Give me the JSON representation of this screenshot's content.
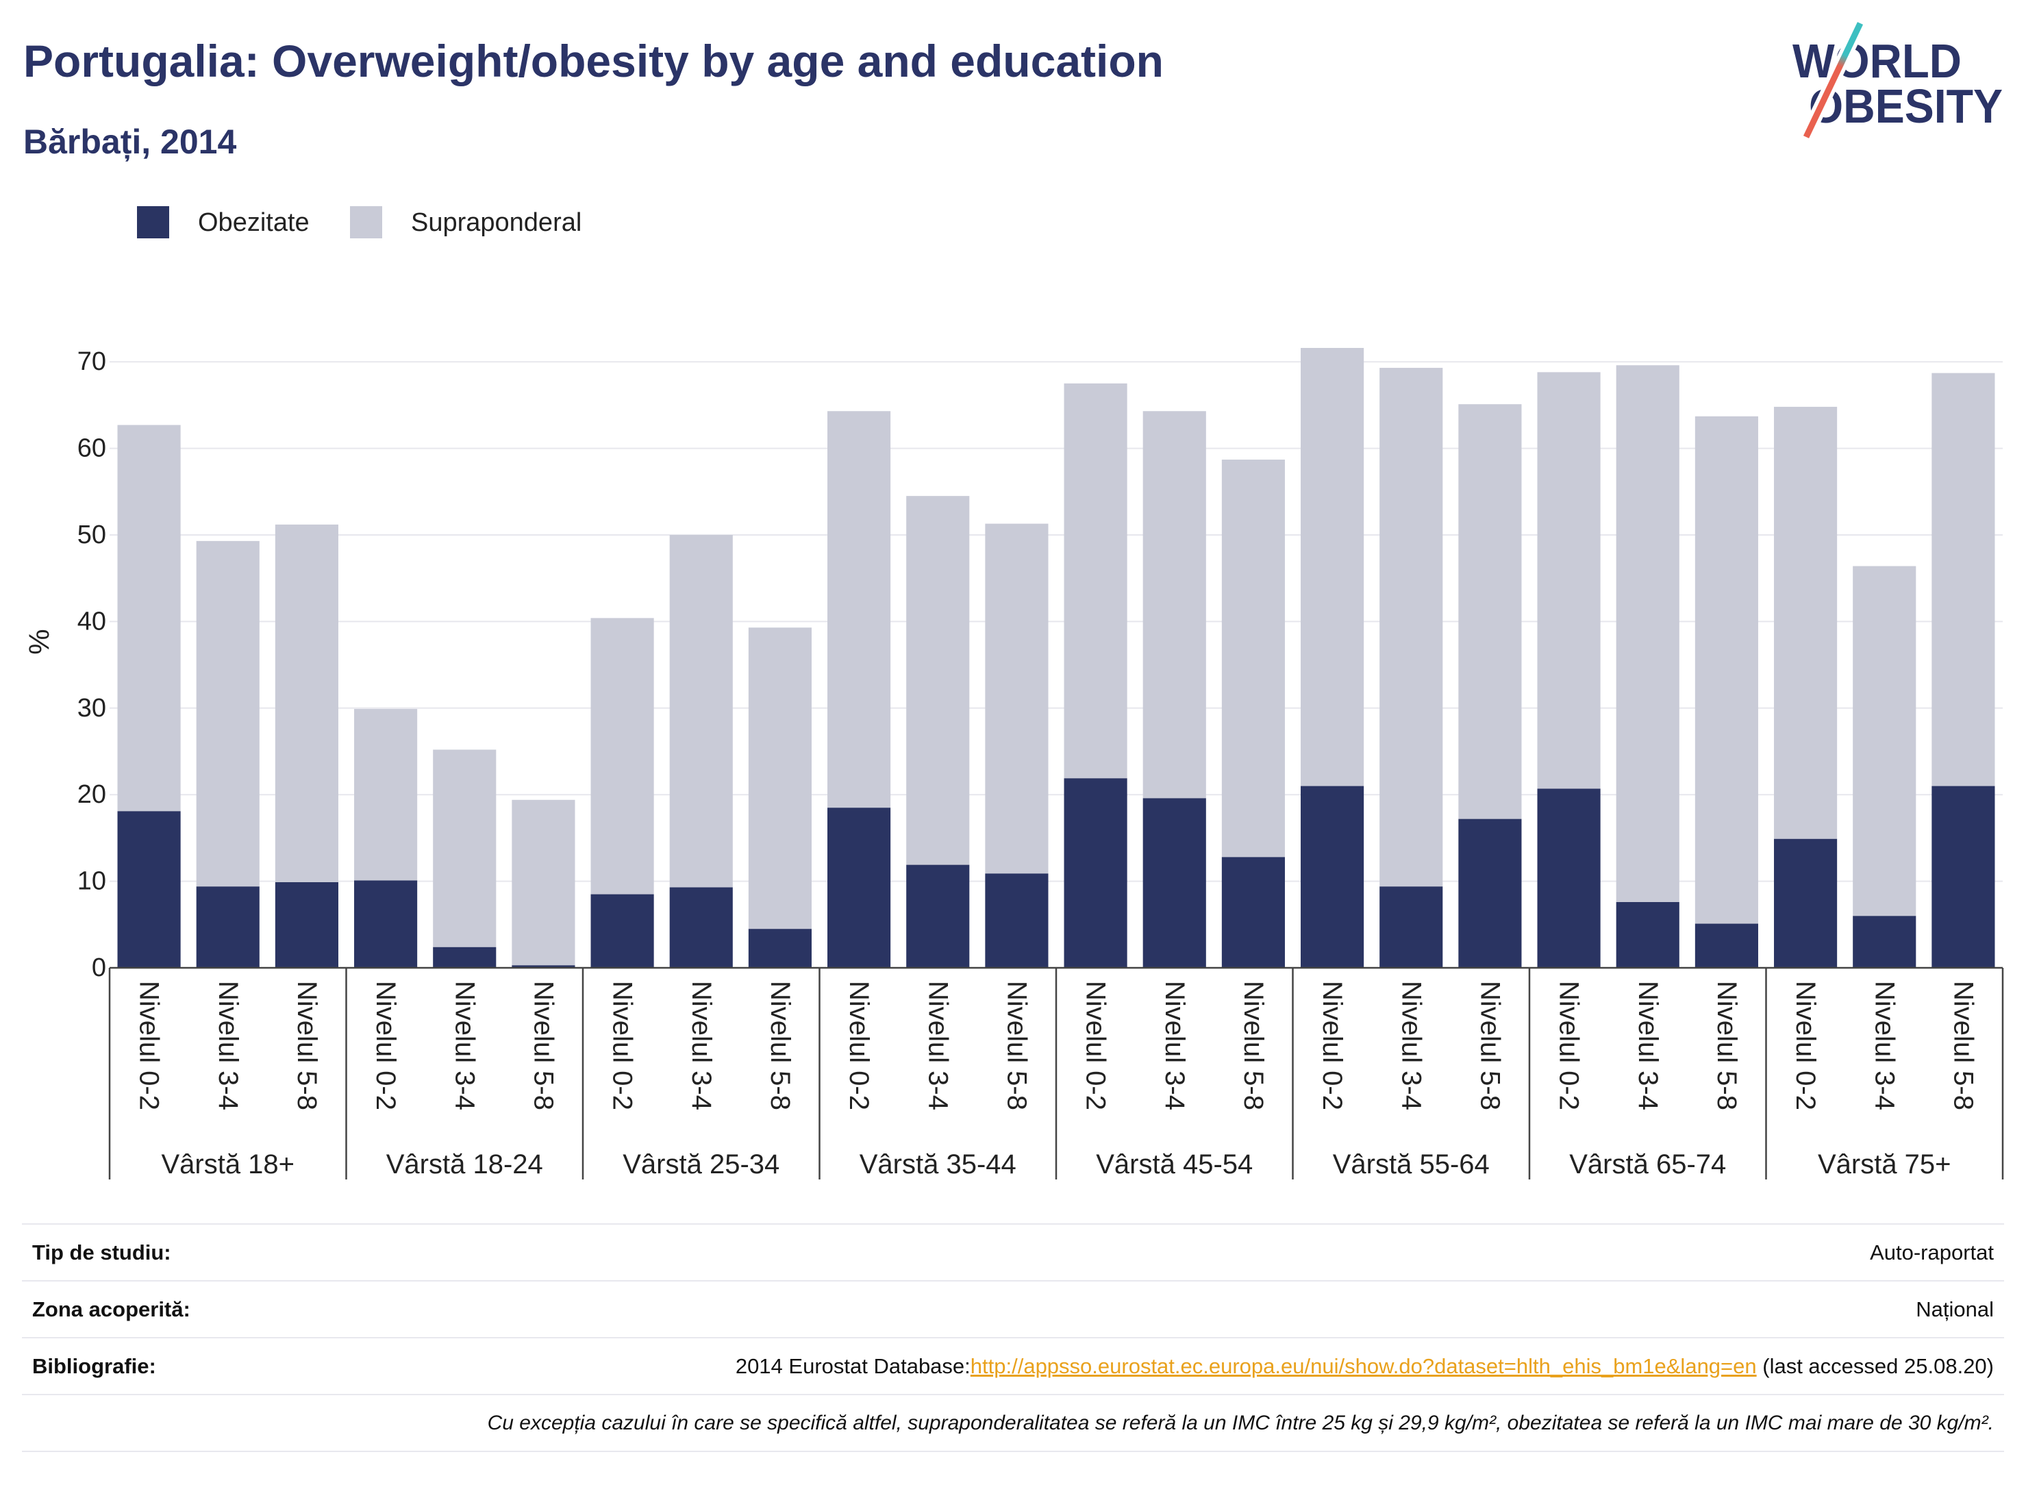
{
  "logo": {
    "line1": "WORLD",
    "line2": "OBESITY",
    "text_color": "#2b3467",
    "slash_colors": [
      "#3dbfc1",
      "#e9614f"
    ]
  },
  "colors": {
    "title": "#2b3467",
    "link": "#e9a11c"
  },
  "chart_data": {
    "type": "bar",
    "barmode": "stack",
    "title": "Portugalia: Overweight/obesity by age and education",
    "subtitle": "Bărbați, 2014",
    "ylabel": "%",
    "ylim": [
      0,
      75
    ],
    "yticks": [
      0,
      10,
      20,
      30,
      40,
      50,
      60,
      70
    ],
    "grid": true,
    "legend_position": "top-left",
    "groups": [
      {
        "label": "Vârstă 18+",
        "categories": [
          "Nivelul 0-2",
          "Nivelul 3-4",
          "Nivelul 5-8"
        ]
      },
      {
        "label": "Vârstă 18-24",
        "categories": [
          "Nivelul 0-2",
          "Nivelul 3-4",
          "Nivelul 5-8"
        ]
      },
      {
        "label": "Vârstă 25-34",
        "categories": [
          "Nivelul 0-2",
          "Nivelul 3-4",
          "Nivelul 5-8"
        ]
      },
      {
        "label": "Vârstă 35-44",
        "categories": [
          "Nivelul 0-2",
          "Nivelul 3-4",
          "Nivelul 5-8"
        ]
      },
      {
        "label": "Vârstă 45-54",
        "categories": [
          "Nivelul 0-2",
          "Nivelul 3-4",
          "Nivelul 5-8"
        ]
      },
      {
        "label": "Vârstă 55-64",
        "categories": [
          "Nivelul 0-2",
          "Nivelul 3-4",
          "Nivelul 5-8"
        ]
      },
      {
        "label": "Vârstă 65-74",
        "categories": [
          "Nivelul 0-2",
          "Nivelul 3-4",
          "Nivelul 5-8"
        ]
      },
      {
        "label": "Vârstă 75+",
        "categories": [
          "Nivelul 0-2",
          "Nivelul 3-4",
          "Nivelul 5-8"
        ]
      }
    ],
    "series": [
      {
        "name": "Obezitate",
        "color": "#2a3462",
        "values": [
          18.1,
          9.4,
          9.9,
          10.1,
          2.4,
          0.3,
          8.5,
          9.3,
          4.5,
          18.5,
          11.9,
          10.9,
          21.9,
          19.6,
          12.8,
          21.0,
          9.4,
          17.2,
          20.7,
          7.6,
          5.1,
          14.9,
          6.0,
          21.0
        ]
      },
      {
        "name": "Supraponderal",
        "color": "#c9cbd7",
        "values": [
          44.6,
          39.9,
          41.3,
          19.8,
          22.8,
          19.1,
          31.9,
          40.7,
          34.8,
          45.8,
          42.6,
          40.4,
          45.6,
          44.7,
          45.9,
          50.6,
          59.9,
          47.9,
          48.1,
          62.0,
          58.6,
          49.9,
          40.4,
          47.7
        ]
      }
    ]
  },
  "footer": {
    "study_type": {
      "label": "Tip de studiu:",
      "value": "Auto-raportat"
    },
    "coverage": {
      "label": "Zona acoperită:",
      "value": "Național"
    },
    "bibliography": {
      "label": "Bibliografie:",
      "prefix": "2014 Eurostat Database:",
      "link": "http://appsso.eurostat.ec.europa.eu/nui/show.do?dataset=hlth_ehis_bm1e&lang=en",
      "suffix": " (last accessed 25.08.20)"
    },
    "note": "Cu excepția cazului în care se specifică altfel, supraponderalitatea se referă la un IMC între 25 kg și 29,9 kg/m², obezitatea se referă la un IMC mai mare de 30 kg/m²."
  }
}
